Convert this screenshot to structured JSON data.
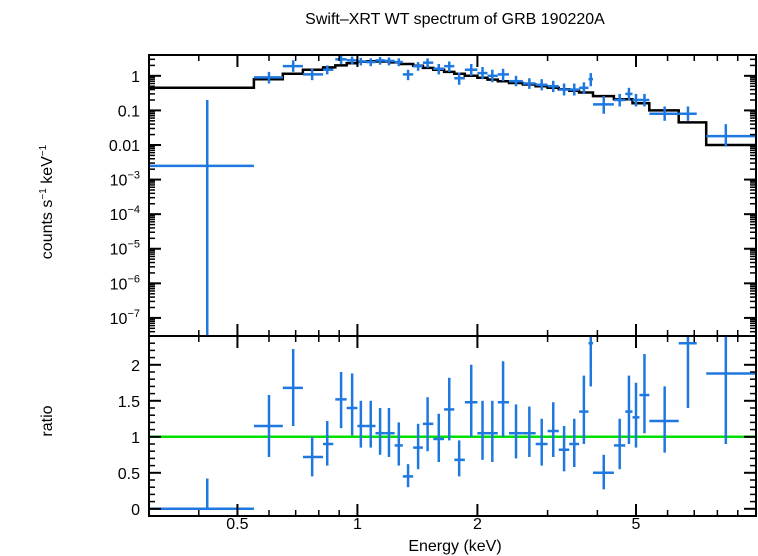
{
  "chart_data": {
    "title": "Swift–XRT WT spectrum of GRB 190220A",
    "top_panel": {
      "type": "scatter",
      "ylabel_parts": [
        "counts s",
        "−1",
        " keV",
        "−1"
      ],
      "y_scale": "log",
      "ylim": [
        3e-08,
        4
      ],
      "y_ticks": [
        {
          "value": 1,
          "label": "1"
        },
        {
          "value": 0.1,
          "label": "0.1"
        },
        {
          "value": 0.01,
          "label": "0.01"
        },
        {
          "value": 0.001,
          "base": "10",
          "exp": "−3"
        },
        {
          "value": 0.0001,
          "base": "10",
          "exp": "−4"
        },
        {
          "value": 1e-05,
          "base": "10",
          "exp": "−5"
        },
        {
          "value": 1e-06,
          "base": "10",
          "exp": "−6"
        },
        {
          "value": 1e-07,
          "base": "10",
          "exp": "−7"
        }
      ],
      "data": [
        {
          "x": 0.42,
          "xlo": 0.3,
          "xhi": 0.55,
          "y": 0.0025,
          "ylo": 1e-08,
          "yhi": 0.2
        },
        {
          "x": 0.6,
          "xlo": 0.55,
          "xhi": 0.65,
          "y": 0.9,
          "ylo": 0.6,
          "yhi": 1.3
        },
        {
          "x": 0.69,
          "xlo": 0.65,
          "xhi": 0.73,
          "y": 1.9,
          "ylo": 1.3,
          "yhi": 2.8
        },
        {
          "x": 0.77,
          "xlo": 0.73,
          "xhi": 0.82,
          "y": 1.1,
          "ylo": 0.75,
          "yhi": 1.6
        },
        {
          "x": 0.84,
          "xlo": 0.82,
          "xhi": 0.87,
          "y": 1.5,
          "ylo": 1.1,
          "yhi": 2.0
        },
        {
          "x": 0.91,
          "xlo": 0.88,
          "xhi": 0.94,
          "y": 3.0,
          "ylo": 2.2,
          "yhi": 4.0
        },
        {
          "x": 0.97,
          "xlo": 0.94,
          "xhi": 1.0,
          "y": 2.8,
          "ylo": 2.1,
          "yhi": 3.6
        },
        {
          "x": 1.02,
          "xlo": 1.0,
          "xhi": 1.05,
          "y": 2.6,
          "ylo": 2.0,
          "yhi": 3.3
        },
        {
          "x": 1.08,
          "xlo": 1.05,
          "xhi": 1.11,
          "y": 2.5,
          "ylo": 1.9,
          "yhi": 3.2
        },
        {
          "x": 1.14,
          "xlo": 1.11,
          "xhi": 1.17,
          "y": 2.8,
          "ylo": 2.1,
          "yhi": 3.5
        },
        {
          "x": 1.2,
          "xlo": 1.17,
          "xhi": 1.24,
          "y": 2.7,
          "ylo": 2.0,
          "yhi": 3.4
        },
        {
          "x": 1.27,
          "xlo": 1.24,
          "xhi": 1.3,
          "y": 2.5,
          "ylo": 1.9,
          "yhi": 3.2
        },
        {
          "x": 1.34,
          "xlo": 1.3,
          "xhi": 1.38,
          "y": 1.1,
          "ylo": 0.75,
          "yhi": 1.5
        },
        {
          "x": 1.42,
          "xlo": 1.38,
          "xhi": 1.46,
          "y": 1.9,
          "ylo": 1.4,
          "yhi": 2.5
        },
        {
          "x": 1.5,
          "xlo": 1.46,
          "xhi": 1.55,
          "y": 2.4,
          "ylo": 1.7,
          "yhi": 3.2
        },
        {
          "x": 1.6,
          "xlo": 1.55,
          "xhi": 1.65,
          "y": 1.6,
          "ylo": 1.1,
          "yhi": 2.2
        },
        {
          "x": 1.7,
          "xlo": 1.65,
          "xhi": 1.75,
          "y": 1.9,
          "ylo": 1.3,
          "yhi": 2.6
        },
        {
          "x": 1.8,
          "xlo": 1.75,
          "xhi": 1.86,
          "y": 0.85,
          "ylo": 0.55,
          "yhi": 1.25
        },
        {
          "x": 1.93,
          "xlo": 1.86,
          "xhi": 2.0,
          "y": 1.5,
          "ylo": 1.0,
          "yhi": 2.2
        },
        {
          "x": 2.06,
          "xlo": 2.0,
          "xhi": 2.12,
          "y": 1.2,
          "ylo": 0.8,
          "yhi": 1.8
        },
        {
          "x": 2.18,
          "xlo": 2.12,
          "xhi": 2.25,
          "y": 1.0,
          "ylo": 0.65,
          "yhi": 1.5
        },
        {
          "x": 2.32,
          "xlo": 2.25,
          "xhi": 2.4,
          "y": 1.1,
          "ylo": 0.7,
          "yhi": 1.6
        },
        {
          "x": 2.5,
          "xlo": 2.4,
          "xhi": 2.6,
          "y": 0.7,
          "ylo": 0.5,
          "yhi": 1.0
        },
        {
          "x": 2.7,
          "xlo": 2.6,
          "xhi": 2.8,
          "y": 0.6,
          "ylo": 0.42,
          "yhi": 0.85
        },
        {
          "x": 2.9,
          "xlo": 2.8,
          "xhi": 3.0,
          "y": 0.55,
          "ylo": 0.38,
          "yhi": 0.8
        },
        {
          "x": 3.1,
          "xlo": 3.0,
          "xhi": 3.2,
          "y": 0.5,
          "ylo": 0.34,
          "yhi": 0.72
        },
        {
          "x": 3.3,
          "xlo": 3.2,
          "xhi": 3.4,
          "y": 0.4,
          "ylo": 0.27,
          "yhi": 0.6
        },
        {
          "x": 3.5,
          "xlo": 3.4,
          "xhi": 3.6,
          "y": 0.4,
          "ylo": 0.27,
          "yhi": 0.6
        },
        {
          "x": 3.7,
          "xlo": 3.6,
          "xhi": 3.8,
          "y": 0.45,
          "ylo": 0.3,
          "yhi": 0.65
        },
        {
          "x": 3.85,
          "xlo": 3.8,
          "xhi": 3.9,
          "y": 0.8,
          "ylo": 0.5,
          "yhi": 1.2
        },
        {
          "x": 4.15,
          "xlo": 3.9,
          "xhi": 4.4,
          "y": 0.15,
          "ylo": 0.08,
          "yhi": 0.26
        },
        {
          "x": 4.55,
          "xlo": 4.4,
          "xhi": 4.7,
          "y": 0.2,
          "ylo": 0.13,
          "yhi": 0.3
        },
        {
          "x": 4.8,
          "xlo": 4.7,
          "xhi": 4.9,
          "y": 0.3,
          "ylo": 0.2,
          "yhi": 0.45
        },
        {
          "x": 5.0,
          "xlo": 4.9,
          "xhi": 5.1,
          "y": 0.2,
          "ylo": 0.13,
          "yhi": 0.3
        },
        {
          "x": 5.25,
          "xlo": 5.1,
          "xhi": 5.4,
          "y": 0.2,
          "ylo": 0.13,
          "yhi": 0.3
        },
        {
          "x": 5.9,
          "xlo": 5.4,
          "xhi": 6.4,
          "y": 0.08,
          "ylo": 0.05,
          "yhi": 0.13
        },
        {
          "x": 6.75,
          "xlo": 6.4,
          "xhi": 7.1,
          "y": 0.08,
          "ylo": 0.05,
          "yhi": 0.13
        },
        {
          "x": 8.4,
          "xlo": 7.5,
          "xhi": 10.0,
          "y": 0.018,
          "ylo": 0.009,
          "yhi": 0.04
        }
      ],
      "model_steps": [
        {
          "x0": 0.3,
          "x1": 0.55,
          "y": 0.45
        },
        {
          "x0": 0.55,
          "x1": 0.65,
          "y": 0.8
        },
        {
          "x0": 0.65,
          "x1": 0.73,
          "y": 1.15
        },
        {
          "x0": 0.73,
          "x1": 0.82,
          "y": 1.5
        },
        {
          "x0": 0.82,
          "x1": 0.88,
          "y": 1.75
        },
        {
          "x0": 0.88,
          "x1": 0.94,
          "y": 2.0
        },
        {
          "x0": 0.94,
          "x1": 1.0,
          "y": 2.3
        },
        {
          "x0": 1.0,
          "x1": 1.06,
          "y": 2.55
        },
        {
          "x0": 1.06,
          "x1": 1.12,
          "y": 2.65
        },
        {
          "x0": 1.12,
          "x1": 1.2,
          "y": 2.6
        },
        {
          "x0": 1.2,
          "x1": 1.28,
          "y": 2.45
        },
        {
          "x0": 1.28,
          "x1": 1.38,
          "y": 2.2
        },
        {
          "x0": 1.38,
          "x1": 1.46,
          "y": 1.95
        },
        {
          "x0": 1.46,
          "x1": 1.55,
          "y": 1.7
        },
        {
          "x0": 1.55,
          "x1": 1.65,
          "y": 1.5
        },
        {
          "x0": 1.65,
          "x1": 1.75,
          "y": 1.3
        },
        {
          "x0": 1.75,
          "x1": 1.86,
          "y": 1.15
        },
        {
          "x0": 1.86,
          "x1": 2.0,
          "y": 1.0
        },
        {
          "x0": 2.0,
          "x1": 2.12,
          "y": 0.88
        },
        {
          "x0": 2.12,
          "x1": 2.25,
          "y": 0.78
        },
        {
          "x0": 2.25,
          "x1": 2.4,
          "y": 0.7
        },
        {
          "x0": 2.4,
          "x1": 2.6,
          "y": 0.62
        },
        {
          "x0": 2.6,
          "x1": 2.8,
          "y": 0.56
        },
        {
          "x0": 2.8,
          "x1": 3.0,
          "y": 0.5
        },
        {
          "x0": 3.0,
          "x1": 3.2,
          "y": 0.45
        },
        {
          "x0": 3.2,
          "x1": 3.4,
          "y": 0.41
        },
        {
          "x0": 3.4,
          "x1": 3.6,
          "y": 0.37
        },
        {
          "x0": 3.6,
          "x1": 3.9,
          "y": 0.33
        },
        {
          "x0": 3.9,
          "x1": 4.4,
          "y": 0.26
        },
        {
          "x0": 4.4,
          "x1": 4.9,
          "y": 0.21
        },
        {
          "x0": 4.9,
          "x1": 5.4,
          "y": 0.16
        },
        {
          "x0": 5.4,
          "x1": 6.4,
          "y": 0.1
        },
        {
          "x0": 6.4,
          "x1": 7.5,
          "y": 0.045
        },
        {
          "x0": 7.5,
          "x1": 10.0,
          "y": 0.01
        }
      ]
    },
    "bottom_panel": {
      "type": "scatter",
      "ylabel": "ratio",
      "y_scale": "linear",
      "ylim": [
        -0.1,
        2.4
      ],
      "y_ticks": [
        {
          "value": 0,
          "label": "0"
        },
        {
          "value": 0.5,
          "label": "0.5"
        },
        {
          "value": 1,
          "label": "1"
        },
        {
          "value": 1.5,
          "label": "1.5"
        },
        {
          "value": 2,
          "label": "2"
        }
      ],
      "reference_line": 1,
      "data": [
        {
          "x": 0.42,
          "xlo": 0.3,
          "xhi": 0.55,
          "y": 0.0,
          "ylo": 0.0,
          "yhi": 0.42
        },
        {
          "x": 0.6,
          "xlo": 0.55,
          "xhi": 0.65,
          "y": 1.15,
          "ylo": 0.72,
          "yhi": 1.58
        },
        {
          "x": 0.69,
          "xlo": 0.65,
          "xhi": 0.73,
          "y": 1.68,
          "ylo": 1.15,
          "yhi": 2.22
        },
        {
          "x": 0.77,
          "xlo": 0.73,
          "xhi": 0.82,
          "y": 0.72,
          "ylo": 0.45,
          "yhi": 1.0
        },
        {
          "x": 0.84,
          "xlo": 0.82,
          "xhi": 0.87,
          "y": 0.9,
          "ylo": 0.6,
          "yhi": 1.22
        },
        {
          "x": 0.91,
          "xlo": 0.88,
          "xhi": 0.94,
          "y": 1.52,
          "ylo": 1.12,
          "yhi": 1.9
        },
        {
          "x": 0.97,
          "xlo": 0.94,
          "xhi": 1.0,
          "y": 1.4,
          "ylo": 1.02,
          "yhi": 1.88
        },
        {
          "x": 1.02,
          "xlo": 1.0,
          "xhi": 1.05,
          "y": 1.15,
          "ylo": 0.85,
          "yhi": 1.5
        },
        {
          "x": 1.08,
          "xlo": 1.05,
          "xhi": 1.11,
          "y": 1.15,
          "ylo": 0.85,
          "yhi": 1.5
        },
        {
          "x": 1.14,
          "xlo": 1.11,
          "xhi": 1.17,
          "y": 1.05,
          "ylo": 0.75,
          "yhi": 1.4
        },
        {
          "x": 1.2,
          "xlo": 1.17,
          "xhi": 1.24,
          "y": 1.05,
          "ylo": 0.72,
          "yhi": 1.4
        },
        {
          "x": 1.27,
          "xlo": 1.24,
          "xhi": 1.3,
          "y": 0.88,
          "ylo": 0.6,
          "yhi": 1.2
        },
        {
          "x": 1.34,
          "xlo": 1.3,
          "xhi": 1.38,
          "y": 0.45,
          "ylo": 0.3,
          "yhi": 0.62
        },
        {
          "x": 1.42,
          "xlo": 1.38,
          "xhi": 1.46,
          "y": 0.85,
          "ylo": 0.55,
          "yhi": 1.18
        },
        {
          "x": 1.5,
          "xlo": 1.46,
          "xhi": 1.55,
          "y": 1.18,
          "ylo": 0.8,
          "yhi": 1.55
        },
        {
          "x": 1.6,
          "xlo": 1.55,
          "xhi": 1.65,
          "y": 0.97,
          "ylo": 0.65,
          "yhi": 1.32
        },
        {
          "x": 1.7,
          "xlo": 1.65,
          "xhi": 1.75,
          "y": 1.38,
          "ylo": 0.95,
          "yhi": 1.82
        },
        {
          "x": 1.8,
          "xlo": 1.75,
          "xhi": 1.86,
          "y": 0.68,
          "ylo": 0.45,
          "yhi": 0.95
        },
        {
          "x": 1.93,
          "xlo": 1.86,
          "xhi": 2.0,
          "y": 1.48,
          "ylo": 1.0,
          "yhi": 2.0
        },
        {
          "x": 2.06,
          "xlo": 2.0,
          "xhi": 2.12,
          "y": 1.05,
          "ylo": 0.68,
          "yhi": 1.5
        },
        {
          "x": 2.18,
          "xlo": 2.12,
          "xhi": 2.25,
          "y": 1.05,
          "ylo": 0.65,
          "yhi": 1.5
        },
        {
          "x": 2.32,
          "xlo": 2.25,
          "xhi": 2.4,
          "y": 1.48,
          "ylo": 1.0,
          "yhi": 2.05
        },
        {
          "x": 2.5,
          "xlo": 2.4,
          "xhi": 2.6,
          "y": 1.05,
          "ylo": 0.7,
          "yhi": 1.45
        },
        {
          "x": 2.7,
          "xlo": 2.6,
          "xhi": 2.8,
          "y": 1.05,
          "ylo": 0.72,
          "yhi": 1.42
        },
        {
          "x": 2.9,
          "xlo": 2.8,
          "xhi": 3.0,
          "y": 0.9,
          "ylo": 0.6,
          "yhi": 1.25
        },
        {
          "x": 3.1,
          "xlo": 3.0,
          "xhi": 3.2,
          "y": 1.08,
          "ylo": 0.72,
          "yhi": 1.48
        },
        {
          "x": 3.3,
          "xlo": 3.2,
          "xhi": 3.4,
          "y": 0.82,
          "ylo": 0.52,
          "yhi": 1.15
        },
        {
          "x": 3.5,
          "xlo": 3.4,
          "xhi": 3.6,
          "y": 0.9,
          "ylo": 0.58,
          "yhi": 1.25
        },
        {
          "x": 3.7,
          "xlo": 3.6,
          "xhi": 3.8,
          "y": 1.35,
          "ylo": 0.9,
          "yhi": 1.85
        },
        {
          "x": 3.85,
          "xlo": 3.8,
          "xhi": 3.9,
          "y": 2.3,
          "ylo": 1.7,
          "yhi": 2.4
        },
        {
          "x": 4.15,
          "xlo": 3.9,
          "xhi": 4.4,
          "y": 0.5,
          "ylo": 0.27,
          "yhi": 0.75
        },
        {
          "x": 4.55,
          "xlo": 4.4,
          "xhi": 4.7,
          "y": 0.88,
          "ylo": 0.55,
          "yhi": 1.25
        },
        {
          "x": 4.8,
          "xlo": 4.7,
          "xhi": 4.9,
          "y": 1.35,
          "ylo": 0.9,
          "yhi": 1.85
        },
        {
          "x": 5.0,
          "xlo": 4.9,
          "xhi": 5.1,
          "y": 1.27,
          "ylo": 0.85,
          "yhi": 1.75
        },
        {
          "x": 5.25,
          "xlo": 5.1,
          "xhi": 5.4,
          "y": 1.58,
          "ylo": 1.05,
          "yhi": 2.15
        },
        {
          "x": 5.9,
          "xlo": 5.4,
          "xhi": 6.4,
          "y": 1.22,
          "ylo": 0.78,
          "yhi": 1.7
        },
        {
          "x": 6.75,
          "xlo": 6.4,
          "xhi": 7.1,
          "y": 2.3,
          "ylo": 1.4,
          "yhi": 2.4
        },
        {
          "x": 8.4,
          "xlo": 7.5,
          "xhi": 10.0,
          "y": 1.88,
          "ylo": 0.9,
          "yhi": 2.4
        }
      ]
    },
    "x_axis": {
      "label": "Energy (keV)",
      "scale": "log",
      "xlim": [
        0.3,
        10.0
      ],
      "ticks": [
        {
          "value": 0.5,
          "label": "0.5"
        },
        {
          "value": 1,
          "label": "1"
        },
        {
          "value": 2,
          "label": "2"
        },
        {
          "value": 5,
          "label": "5"
        }
      ]
    },
    "colors": {
      "data": "#1e78e0",
      "model": "#000000",
      "reference": "#00e000",
      "axes": "#000000"
    }
  }
}
